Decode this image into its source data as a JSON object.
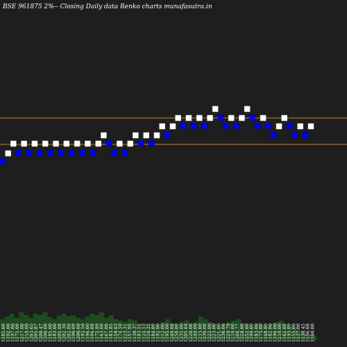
{
  "chart_data": {
    "type": "renko",
    "title": "BSE 961875 2%-- Closing Daily data  Renko  charts munafasutra.in",
    "colors": {
      "background": "#1e1e1e",
      "up_brick": "#ffffff",
      "down_brick": "#0000ff",
      "reference_line": "#d2841e",
      "volume": "#1f4a1f"
    },
    "reference_lines": [
      1241,
      1203
    ],
    "bricks": [
      {
        "dir": "down",
        "value": 1178
      },
      {
        "dir": "up",
        "value": 1190
      },
      {
        "dir": "up",
        "value": 1204
      },
      {
        "dir": "down",
        "value": 1190
      },
      {
        "dir": "up",
        "value": 1204
      },
      {
        "dir": "down",
        "value": 1190
      },
      {
        "dir": "up",
        "value": 1204
      },
      {
        "dir": "down",
        "value": 1190
      },
      {
        "dir": "up",
        "value": 1204
      },
      {
        "dir": "down",
        "value": 1190
      },
      {
        "dir": "up",
        "value": 1204
      },
      {
        "dir": "down",
        "value": 1190
      },
      {
        "dir": "up",
        "value": 1204
      },
      {
        "dir": "down",
        "value": 1190
      },
      {
        "dir": "up",
        "value": 1204
      },
      {
        "dir": "down",
        "value": 1190
      },
      {
        "dir": "up",
        "value": 1204
      },
      {
        "dir": "down",
        "value": 1190
      },
      {
        "dir": "up",
        "value": 1204
      },
      {
        "dir": "up",
        "value": 1216
      },
      {
        "dir": "down",
        "value": 1204
      },
      {
        "dir": "down",
        "value": 1190
      },
      {
        "dir": "up",
        "value": 1204
      },
      {
        "dir": "down",
        "value": 1190
      },
      {
        "dir": "up",
        "value": 1204
      },
      {
        "dir": "up",
        "value": 1216
      },
      {
        "dir": "down",
        "value": 1204
      },
      {
        "dir": "up",
        "value": 1216
      },
      {
        "dir": "down",
        "value": 1204
      },
      {
        "dir": "up",
        "value": 1216
      },
      {
        "dir": "up",
        "value": 1229
      },
      {
        "dir": "down",
        "value": 1216
      },
      {
        "dir": "up",
        "value": 1229
      },
      {
        "dir": "up",
        "value": 1241
      },
      {
        "dir": "down",
        "value": 1229
      },
      {
        "dir": "up",
        "value": 1241
      },
      {
        "dir": "down",
        "value": 1229
      },
      {
        "dir": "up",
        "value": 1241
      },
      {
        "dir": "down",
        "value": 1229
      },
      {
        "dir": "up",
        "value": 1241
      },
      {
        "dir": "up",
        "value": 1254
      },
      {
        "dir": "down",
        "value": 1241
      },
      {
        "dir": "down",
        "value": 1229
      },
      {
        "dir": "up",
        "value": 1241
      },
      {
        "dir": "down",
        "value": 1229
      },
      {
        "dir": "up",
        "value": 1241
      },
      {
        "dir": "up",
        "value": 1254
      },
      {
        "dir": "down",
        "value": 1241
      },
      {
        "dir": "down",
        "value": 1229
      },
      {
        "dir": "up",
        "value": 1241
      },
      {
        "dir": "down",
        "value": 1229
      },
      {
        "dir": "down",
        "value": 1216
      },
      {
        "dir": "up",
        "value": 1229
      },
      {
        "dir": "up",
        "value": 1241
      },
      {
        "dir": "down",
        "value": 1229
      },
      {
        "dir": "down",
        "value": 1216
      },
      {
        "dir": "up",
        "value": 1229
      },
      {
        "dir": "down",
        "value": 1216
      },
      {
        "dir": "up",
        "value": 1229
      }
    ],
    "x_labels": [
      "1185.00",
      "1192.00",
      "1197.00",
      "1175.00",
      "1217.00",
      "1218.00",
      "1203.65",
      "1205.87",
      "1200.47",
      "1206.00",
      "1185.00",
      "1183.00",
      "1205.08",
      "1202.30",
      "1202.00",
      "1196.09",
      "1200.00",
      "1192.50",
      "1196.00",
      "1194.00",
      "1175.89",
      "1163.00",
      "1167.00",
      "1183.85",
      "1159.63",
      "1174.59",
      "1223.31",
      "1157.95",
      "1130.37",
      "1183.51",
      "1124.13",
      "1124.21",
      "1184.00",
      "1192.00",
      "1212.00",
      "1195.00",
      "1240.00",
      "1250.00",
      "1235.00",
      "1205.04",
      "1220.00",
      "1240.00",
      "1215.00",
      "1230.00",
      "1222.00",
      "1223.00",
      "1221.00",
      "1236.00",
      "1229.79",
      "1218.00",
      "1208.77",
      "1228.00",
      "1252.00",
      "1199.00",
      "1183.00",
      "1175.00",
      "1168.80",
      "1182.00",
      "1196.00",
      "1210.00",
      "1162.00",
      "1195.09",
      "1155.00",
      "1137.00",
      "1136.45",
      "1156.00",
      "1160.00"
    ],
    "volume_baseline": 490,
    "volume": [
      30,
      34,
      38,
      32,
      40,
      36,
      32,
      38,
      36,
      40,
      33,
      30,
      35,
      38,
      34,
      36,
      32,
      30,
      34,
      38,
      36,
      40,
      32,
      36,
      30,
      28,
      26,
      30,
      28,
      24,
      22,
      24,
      20,
      22,
      26,
      30,
      24,
      22,
      26,
      28,
      24,
      26,
      34,
      30,
      26,
      22,
      20,
      24,
      26,
      28,
      30,
      24,
      22,
      20,
      24,
      22,
      20,
      24,
      26,
      28,
      22,
      20,
      18,
      14,
      10,
      8,
      6
    ]
  }
}
